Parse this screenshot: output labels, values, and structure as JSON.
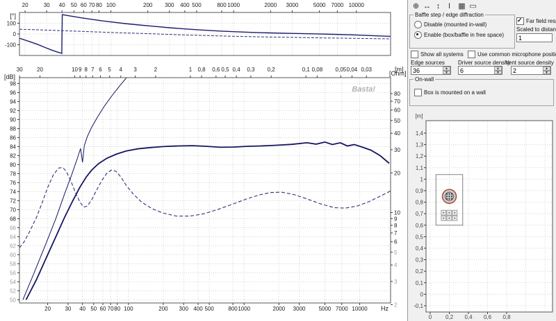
{
  "app": {
    "watermark": "Basta!"
  },
  "toolbar": {
    "icons": [
      {
        "name": "move-tool-icon",
        "glyph": "⊕"
      },
      {
        "name": "horizontal-resize-icon",
        "glyph": "↔"
      },
      {
        "name": "vertical-resize-icon",
        "glyph": "↕"
      },
      {
        "name": "cursor-tool-icon",
        "glyph": "I"
      },
      {
        "name": "grid-tool-icon",
        "glyph": "▦"
      },
      {
        "name": "box-tool-icon",
        "glyph": "▭"
      }
    ]
  },
  "panel": {
    "baffle_group": {
      "legend": "Baffle step / edge diffraction",
      "radio_disable": {
        "label": "Disable (mounted in-wall)",
        "selected": false
      },
      "radio_enable": {
        "label": "Enable (box/baffle in free space)",
        "selected": true
      }
    },
    "far_field": {
      "label": "Far field response",
      "checked": true
    },
    "scaled_to_distance": {
      "label": "Scaled to distance [m]",
      "value": "1"
    },
    "show_all_systems": {
      "label": "Show all systems",
      "checked": false
    },
    "use_common_mic": {
      "label": "Use common microphone position",
      "checked": false
    },
    "edge_sources": {
      "label": "Edge sources",
      "value": "36"
    },
    "driver_density": {
      "label": "Driver source density",
      "value": "6"
    },
    "vent_density": {
      "label": "Vent source density",
      "value": "2"
    },
    "on_wall": {
      "legend": "On-wall",
      "checkbox": {
        "label": "Box is mounted on a wall",
        "checked": false
      }
    }
  },
  "chart_data": [
    {
      "type": "line",
      "name": "phase-response",
      "x_scale": "log",
      "x_min": 18,
      "x_max": 19000,
      "x_ticks": [
        20,
        30,
        40,
        50,
        60,
        70,
        80,
        100,
        200,
        300,
        400,
        500,
        800,
        1000,
        2000,
        3000,
        5000,
        7000,
        10000
      ],
      "y_label": "[°]",
      "y_min": -200,
      "y_max": 200,
      "y_ticks": [
        100,
        0,
        -100
      ],
      "grid": true,
      "series": [
        {
          "name": "system-phase-solid",
          "style": "solid",
          "width": 1.4,
          "color": "#1b1b6e",
          "points": [
            [
              18,
              -40
            ],
            [
              21,
              -65
            ],
            [
              25,
              -95
            ],
            [
              29,
              -125
            ],
            [
              33,
              -150
            ],
            [
              37,
              -170
            ],
            [
              39.8,
              -180
            ],
            [
              40.2,
              180
            ],
            [
              44,
              172
            ],
            [
              50,
              162
            ],
            [
              58,
              150
            ],
            [
              70,
              136
            ],
            [
              85,
              122
            ],
            [
              100,
              112
            ],
            [
              130,
              97
            ],
            [
              170,
              84
            ],
            [
              220,
              72
            ],
            [
              300,
              58
            ],
            [
              400,
              47
            ],
            [
              550,
              37
            ],
            [
              750,
              28
            ],
            [
              1000,
              21
            ],
            [
              1400,
              15
            ],
            [
              2000,
              10
            ],
            [
              3000,
              5
            ],
            [
              4500,
              1
            ],
            [
              6500,
              -3
            ],
            [
              9000,
              -8
            ],
            [
              13000,
              -15
            ],
            [
              19000,
              -22
            ]
          ]
        },
        {
          "name": "system-phase-dashed",
          "style": "dashed",
          "width": 1,
          "color": "#2e2e7a",
          "points": [
            [
              18,
              44
            ],
            [
              24,
              40
            ],
            [
              32,
              35
            ],
            [
              45,
              29
            ],
            [
              65,
              22
            ],
            [
              90,
              16
            ],
            [
              130,
              10
            ],
            [
              200,
              3
            ],
            [
              280,
              -3
            ],
            [
              400,
              -9
            ],
            [
              600,
              -15
            ],
            [
              900,
              -20
            ],
            [
              1400,
              -25
            ],
            [
              2200,
              -29
            ],
            [
              3500,
              -33
            ],
            [
              5500,
              -37
            ],
            [
              9000,
              -40
            ],
            [
              14000,
              -43
            ],
            [
              19000,
              -45
            ]
          ]
        }
      ]
    },
    {
      "type": "line",
      "name": "spl-impedance",
      "x_scale": "log",
      "x_min": 11.4,
      "x_max": 18500,
      "x_ticks": [
        20,
        30,
        40,
        50,
        60,
        70,
        80,
        100,
        200,
        300,
        400,
        500,
        800,
        1000,
        2000,
        3000,
        5000,
        7000,
        10000
      ],
      "x_unit": "Hz",
      "top_unit": "[m]",
      "speed_of_sound": 343,
      "top_ticks_wavelength_m": [
        30,
        20,
        10,
        9,
        8,
        7,
        6,
        5,
        4,
        3,
        2,
        1,
        0.8,
        0.6,
        0.5,
        0.4,
        0.3,
        0.2,
        0.1,
        0.08,
        0.05,
        0.04,
        0.03
      ],
      "left_label": "[dB]",
      "db_min": 49.3,
      "db_max": 99.3,
      "db_ticks": [
        98,
        96,
        94,
        92,
        90,
        88,
        86,
        84,
        82,
        80,
        78,
        76,
        74,
        72,
        70,
        68,
        66,
        64,
        62,
        60,
        58,
        56,
        54,
        52,
        50
      ],
      "db_gray_below": 68,
      "right_label": "[Ohm]",
      "ohm_ticks": [
        80,
        70,
        60,
        50,
        40,
        30,
        20,
        10,
        9,
        8,
        7,
        6,
        5,
        4,
        3,
        2
      ],
      "ohm_gray_below": 6,
      "watermark": "Basta!",
      "grid": true,
      "series": [
        {
          "name": "spl-response",
          "axis": "db",
          "style": "solid",
          "width": 1.8,
          "color": "#14145f",
          "points": [
            [
              13,
              50
            ],
            [
              16,
              54.5
            ],
            [
              20,
              60
            ],
            [
              24,
              64.5
            ],
            [
              28,
              68.3
            ],
            [
              33,
              72
            ],
            [
              38,
              75
            ],
            [
              43,
              77.2
            ],
            [
              48,
              78.8
            ],
            [
              55,
              80.2
            ],
            [
              65,
              81.4
            ],
            [
              78,
              82.3
            ],
            [
              95,
              83
            ],
            [
              120,
              83.5
            ],
            [
              155,
              83.8
            ],
            [
              200,
              84
            ],
            [
              270,
              84.15
            ],
            [
              360,
              84.2
            ],
            [
              480,
              84.05
            ],
            [
              620,
              83.85
            ],
            [
              800,
              83.9
            ],
            [
              1050,
              84.05
            ],
            [
              1400,
              84.15
            ],
            [
              1900,
              84.3
            ],
            [
              2600,
              84.5
            ],
            [
              3500,
              84.85
            ],
            [
              4200,
              84.55
            ],
            [
              5000,
              85
            ],
            [
              5800,
              84.45
            ],
            [
              6800,
              84.85
            ],
            [
              7800,
              84.15
            ],
            [
              9000,
              84.45
            ],
            [
              10500,
              83.9
            ],
            [
              12500,
              83.2
            ],
            [
              15000,
              82
            ],
            [
              18000,
              80.3
            ]
          ]
        },
        {
          "name": "rising-aux-line",
          "axis": "db",
          "style": "solid",
          "width": 1,
          "color": "#14145f",
          "points": [
            [
              12.2,
              50
            ],
            [
              15,
              55.5
            ],
            [
              19,
              62
            ],
            [
              23.5,
              68
            ],
            [
              28,
              73.5
            ],
            [
              32,
              77.5
            ],
            [
              36,
              81.3
            ],
            [
              38.5,
              83.6
            ],
            [
              40,
              80.5
            ],
            [
              41.5,
              84.2
            ],
            [
              44,
              86.2
            ],
            [
              48,
              88.3
            ],
            [
              54,
              90.6
            ],
            [
              62,
              93
            ],
            [
              72,
              95.3
            ],
            [
              84,
              97.5
            ],
            [
              97,
              99.4
            ],
            [
              108,
              101
            ]
          ]
        },
        {
          "name": "impedance",
          "axis": "ohm",
          "style": "dashed",
          "width": 1.1,
          "color": "#2e2e7a",
          "points": [
            [
              11.4,
              5.4
            ],
            [
              12.5,
              6
            ],
            [
              14,
              7.2
            ],
            [
              16,
              9.2
            ],
            [
              18,
              12
            ],
            [
              20,
              15.5
            ],
            [
              22.5,
              19.5
            ],
            [
              25,
              21.8
            ],
            [
              27,
              22
            ],
            [
              29,
              20.5
            ],
            [
              32,
              17
            ],
            [
              35,
              14
            ],
            [
              38,
              12
            ],
            [
              41,
              11
            ],
            [
              44,
              11.2
            ],
            [
              48,
              12.5
            ],
            [
              53,
              14.8
            ],
            [
              59,
              17.6
            ],
            [
              65,
              19.9
            ],
            [
              71,
              21
            ],
            [
              78,
              20.6
            ],
            [
              86,
              18.6
            ],
            [
              96,
              16
            ],
            [
              110,
              13.8
            ],
            [
              130,
              12
            ],
            [
              160,
              10.7
            ],
            [
              200,
              9.9
            ],
            [
              260,
              9.4
            ],
            [
              340,
              9.4
            ],
            [
              450,
              9.8
            ],
            [
              600,
              10.6
            ],
            [
              800,
              11.6
            ],
            [
              1050,
              12.7
            ],
            [
              1350,
              13.6
            ],
            [
              1700,
              14.2
            ],
            [
              2100,
              14.3
            ],
            [
              2700,
              13.7
            ],
            [
              3500,
              12.7
            ],
            [
              4500,
              11.7
            ],
            [
              6000,
              10.9
            ],
            [
              7500,
              10.8
            ],
            [
              9500,
              11.2
            ],
            [
              12000,
              12.1
            ],
            [
              15000,
              13.3
            ],
            [
              18500,
              14.6
            ]
          ]
        }
      ]
    },
    {
      "type": "layout",
      "name": "baffle-layout",
      "y_label": "[m]",
      "x_ticks": [
        0,
        0.2,
        0.4,
        0.6,
        0.8
      ],
      "y_ticks": [
        1.4,
        1.3,
        1.2,
        1.1,
        1,
        0.9,
        0.8,
        0.7,
        0.6,
        0.5,
        0.4,
        0.3,
        0.2,
        0.1,
        0,
        -0.1
      ],
      "baffle": {
        "x": 0.06,
        "y_bottom": 0.6,
        "width": 0.28,
        "height": 0.44
      },
      "driver": {
        "cx": 0.2,
        "cy": 0.85,
        "r": 0.072
      },
      "vent_grid": {
        "cols": 3,
        "rows": 2,
        "x": 0.115,
        "y_top": 0.73,
        "cell": 0.055
      }
    }
  ]
}
